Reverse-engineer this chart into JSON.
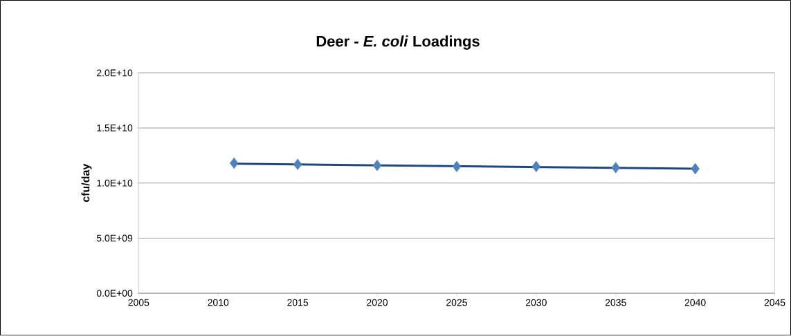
{
  "chart_data": {
    "type": "scatter",
    "title": "Deer -  *E. coli* Loadings",
    "ylabel": "cfu/day",
    "x": [
      2011,
      2015,
      2020,
      2025,
      2030,
      2035,
      2040
    ],
    "series": [
      {
        "type": "scatter",
        "color": "#4f81bd",
        "marker": "diamond",
        "values": [
          11800000000.0,
          11700000000.0,
          11600000000.0,
          11500000000.0,
          11500000000.0,
          11400000000.0,
          11300000000.0
        ]
      },
      {
        "type": "line",
        "color": "#1f497d",
        "marker": "none",
        "x": [
          2011,
          2040
        ],
        "values": [
          11750000000.0,
          11300000000.0
        ]
      }
    ],
    "xlim": [
      2005,
      2045
    ],
    "xticks": [
      2005,
      2010,
      2015,
      2020,
      2025,
      2030,
      2035,
      2040,
      2045
    ],
    "ylim": [
      0,
      20000000000.0
    ],
    "yticks": [
      {
        "value": 0,
        "label": "0.0E+00"
      },
      {
        "value": 5000000000.0,
        "label": "5.0E+09"
      },
      {
        "value": 10000000000.0,
        "label": "1.0E+10"
      },
      {
        "value": 15000000000.0,
        "label": "1.5E+10"
      },
      {
        "value": 20000000000.0,
        "label": "2.0E+10"
      }
    ],
    "grid": "y"
  }
}
